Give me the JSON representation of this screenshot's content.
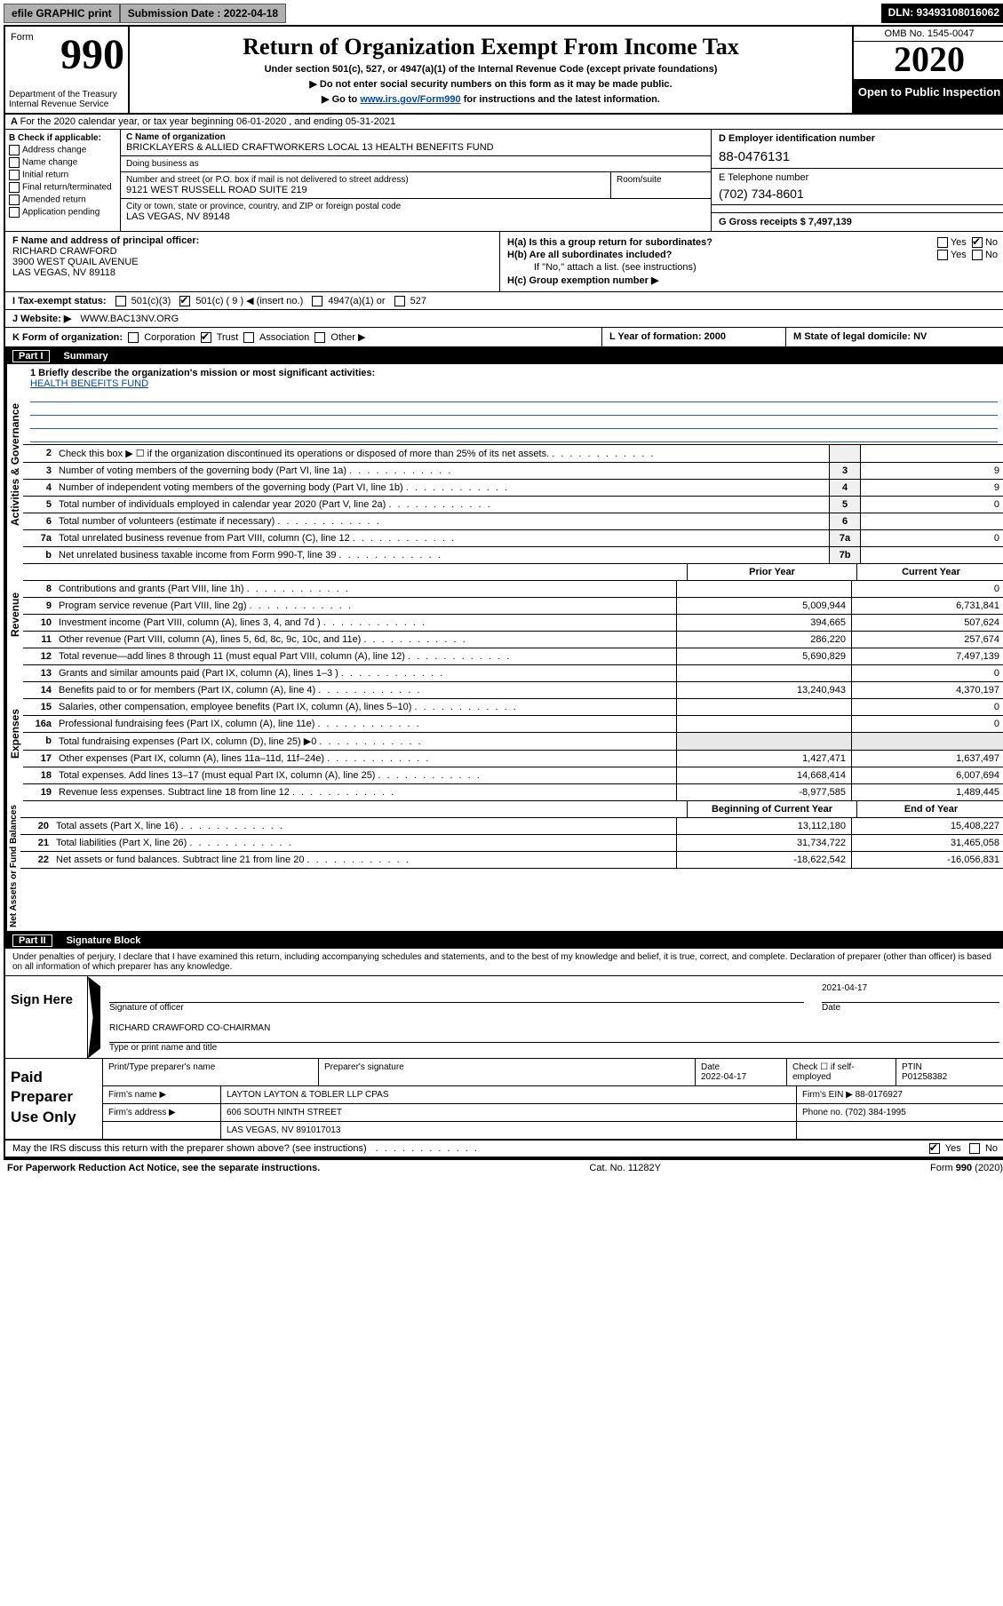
{
  "topbar": {
    "efile": "efile GRAPHIC print",
    "submission_label": "Submission Date : 2022-04-18",
    "dln": "DLN: 93493108016062"
  },
  "header": {
    "form_word": "Form",
    "form_number": "990",
    "title": "Return of Organization Exempt From Income Tax",
    "subtitle": "Under section 501(c), 527, or 4947(a)(1) of the Internal Revenue Code (except private foundations)",
    "note1": "▶ Do not enter social security numbers on this form as it may be made public.",
    "note2_pre": "▶ Go to ",
    "note2_link": "www.irs.gov/Form990",
    "note2_post": " for instructions and the latest information.",
    "dept": "Department of the Treasury\nInternal Revenue Service",
    "omb": "OMB No. 1545-0047",
    "year": "2020",
    "inspect": "Open to Public Inspection"
  },
  "line_A": "For the 2020 calendar year, or tax year beginning 06-01-2020    , and ending 05-31-2021",
  "B": {
    "label": "B Check if applicable:",
    "opts": [
      "Address change",
      "Name change",
      "Initial return",
      "Final return/terminated",
      "Amended return",
      "Application pending"
    ]
  },
  "C": {
    "name_label": "C Name of organization",
    "name": "BRICKLAYERS & ALLIED CRAFTWORKERS LOCAL 13 HEALTH BENEFITS FUND",
    "dba_label": "Doing business as",
    "street_label": "Number and street (or P.O. box if mail is not delivered to street address)",
    "room_label": "Room/suite",
    "street": "9121 WEST RUSSELL ROAD SUITE 219",
    "city_label": "City or town, state or province, country, and ZIP or foreign postal code",
    "city": "LAS VEGAS, NV  89148"
  },
  "D": {
    "label": "D Employer identification number",
    "val": "88-0476131"
  },
  "E": {
    "label": "E Telephone number",
    "val": "(702) 734-8601"
  },
  "G": {
    "label": "G Gross receipts $ 7,497,139"
  },
  "F": {
    "label": "F  Name and address of principal officer:",
    "name": "RICHARD CRAWFORD",
    "addr1": "3900 WEST QUAIL AVENUE",
    "addr2": "LAS VEGAS, NV  89118"
  },
  "H": {
    "a": "H(a)  Is this a group return for subordinates?",
    "b": "H(b)  Are all subordinates included?",
    "b_note": "If \"No,\" attach a list. (see instructions)",
    "c": "H(c)  Group exemption number ▶",
    "yes": "Yes",
    "no": "No"
  },
  "I": {
    "label": "I   Tax-exempt status:",
    "o1": "501(c)(3)",
    "o2": "501(c) ( 9 ) ◀ (insert no.)",
    "o3": "4947(a)(1) or",
    "o4": "527"
  },
  "J": {
    "label": "J   Website: ▶",
    "val": "WWW.BAC13NV.ORG"
  },
  "K": {
    "label": "K Form of organization:",
    "opts": [
      "Corporation",
      "Trust",
      "Association",
      "Other ▶"
    ],
    "checked_idx": 1
  },
  "L": {
    "label": "L Year of formation: 2000"
  },
  "M": {
    "label": "M State of legal domicile: NV"
  },
  "partI": {
    "num": "Part I",
    "title": "Summary"
  },
  "mission": {
    "q1": "1   Briefly describe the organization's mission or most significant activities:",
    "text": "HEALTH BENEFITS FUND"
  },
  "lines_gov": [
    {
      "n": "2",
      "t": "Check this box ▶ ☐  if the organization discontinued its operations or disposed of more than 25% of its net assets.",
      "box": "",
      "v": ""
    },
    {
      "n": "3",
      "t": "Number of voting members of the governing body (Part VI, line 1a)",
      "box": "3",
      "v": "9"
    },
    {
      "n": "4",
      "t": "Number of independent voting members of the governing body (Part VI, line 1b)",
      "box": "4",
      "v": "9"
    },
    {
      "n": "5",
      "t": "Total number of individuals employed in calendar year 2020 (Part V, line 2a)",
      "box": "5",
      "v": "0"
    },
    {
      "n": "6",
      "t": "Total number of volunteers (estimate if necessary)",
      "box": "6",
      "v": ""
    },
    {
      "n": "7a",
      "t": "Total unrelated business revenue from Part VIII, column (C), line 12",
      "box": "7a",
      "v": "0"
    },
    {
      "n": "b",
      "t": "Net unrelated business taxable income from Form 990-T, line 39",
      "box": "7b",
      "v": ""
    }
  ],
  "rev_head": {
    "c1": "Prior Year",
    "c2": "Current Year"
  },
  "lines_rev": [
    {
      "n": "8",
      "t": "Contributions and grants (Part VIII, line 1h)",
      "p": "",
      "c": "0"
    },
    {
      "n": "9",
      "t": "Program service revenue (Part VIII, line 2g)",
      "p": "5,009,944",
      "c": "6,731,841"
    },
    {
      "n": "10",
      "t": "Investment income (Part VIII, column (A), lines 3, 4, and 7d )",
      "p": "394,665",
      "c": "507,624"
    },
    {
      "n": "11",
      "t": "Other revenue (Part VIII, column (A), lines 5, 6d, 8c, 9c, 10c, and 11e)",
      "p": "286,220",
      "c": "257,674"
    },
    {
      "n": "12",
      "t": "Total revenue—add lines 8 through 11 (must equal Part VIII, column (A), line 12)",
      "p": "5,690,829",
      "c": "7,497,139"
    }
  ],
  "lines_exp": [
    {
      "n": "13",
      "t": "Grants and similar amounts paid (Part IX, column (A), lines 1–3 )",
      "p": "",
      "c": "0"
    },
    {
      "n": "14",
      "t": "Benefits paid to or for members (Part IX, column (A), line 4)",
      "p": "13,240,943",
      "c": "4,370,197"
    },
    {
      "n": "15",
      "t": "Salaries, other compensation, employee benefits (Part IX, column (A), lines 5–10)",
      "p": "",
      "c": "0"
    },
    {
      "n": "16a",
      "t": "Professional fundraising fees (Part IX, column (A), line 11e)",
      "p": "",
      "c": "0"
    },
    {
      "n": "b",
      "t": "Total fundraising expenses (Part IX, column (D), line 25) ▶0",
      "p": "—shade—",
      "c": "—shade—"
    },
    {
      "n": "17",
      "t": "Other expenses (Part IX, column (A), lines 11a–11d, 11f–24e)",
      "p": "1,427,471",
      "c": "1,637,497"
    },
    {
      "n": "18",
      "t": "Total expenses. Add lines 13–17 (must equal Part IX, column (A), line 25)",
      "p": "14,668,414",
      "c": "6,007,694"
    },
    {
      "n": "19",
      "t": "Revenue less expenses. Subtract line 18 from line 12",
      "p": "-8,977,585",
      "c": "1,489,445"
    }
  ],
  "na_head": {
    "c1": "Beginning of Current Year",
    "c2": "End of Year"
  },
  "lines_na": [
    {
      "n": "20",
      "t": "Total assets (Part X, line 16)",
      "p": "13,112,180",
      "c": "15,408,227"
    },
    {
      "n": "21",
      "t": "Total liabilities (Part X, line 26)",
      "p": "31,734,722",
      "c": "31,465,058"
    },
    {
      "n": "22",
      "t": "Net assets or fund balances. Subtract line 21 from line 20",
      "p": "-18,622,542",
      "c": "-16,056,831"
    }
  ],
  "partII": {
    "num": "Part II",
    "title": "Signature Block"
  },
  "perjury": "Under penalties of perjury, I declare that I have examined this return, including accompanying schedules and statements, and to the best of my knowledge and belief, it is true, correct, and complete. Declaration of preparer (other than officer) is based on all information of which preparer has any knowledge.",
  "sign": {
    "here": "Sign Here",
    "sig_label": "Signature of officer",
    "date_label": "Date",
    "date_val": "2021-04-17",
    "name": "RICHARD CRAWFORD CO-CHAIRMAN",
    "name_label": "Type or print name and title"
  },
  "prep": {
    "left": "Paid Preparer Use Only",
    "h1": "Print/Type preparer's name",
    "h2": "Preparer's signature",
    "h3": "Date",
    "date": "2022-04-17",
    "h4": "Check ☐ if self-employed",
    "h5": "PTIN",
    "ptin": "P01258382",
    "firm_name_lbl": "Firm's name    ▶",
    "firm_name": "LAYTON LAYTON & TOBLER LLP CPAS",
    "firm_ein_lbl": "Firm's EIN ▶",
    "firm_ein": "88-0176927",
    "firm_addr_lbl": "Firm's address ▶",
    "firm_addr1": "606 SOUTH NINTH STREET",
    "firm_addr2": "LAS VEGAS, NV  891017013",
    "phone_lbl": "Phone no.",
    "phone": "(702) 384-1995"
  },
  "discuss": "May the IRS discuss this return with the preparer shown above? (see instructions)",
  "footer": {
    "left": "For Paperwork Reduction Act Notice, see the separate instructions.",
    "mid": "Cat. No. 11282Y",
    "right": "Form 990 (2020)"
  },
  "vlabels": {
    "gov": "Activities & Governance",
    "rev": "Revenue",
    "exp": "Expenses",
    "na": "Net Assets or Fund Balances"
  }
}
